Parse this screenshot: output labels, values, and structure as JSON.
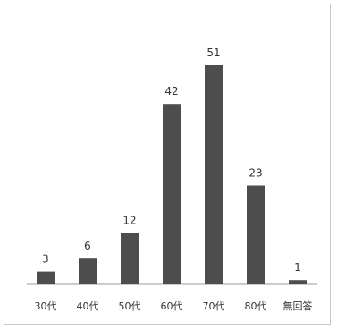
{
  "chart_data": {
    "type": "bar",
    "categories": [
      "30代",
      "40代",
      "50代",
      "60代",
      "70代",
      "80代",
      "無回答"
    ],
    "values": [
      3,
      6,
      12,
      42,
      51,
      23,
      1
    ],
    "title": "",
    "xlabel": "",
    "ylabel": "",
    "ylim": [
      0,
      51
    ],
    "grid": false,
    "legend": "none",
    "bar_color": "#4d4d4d"
  }
}
